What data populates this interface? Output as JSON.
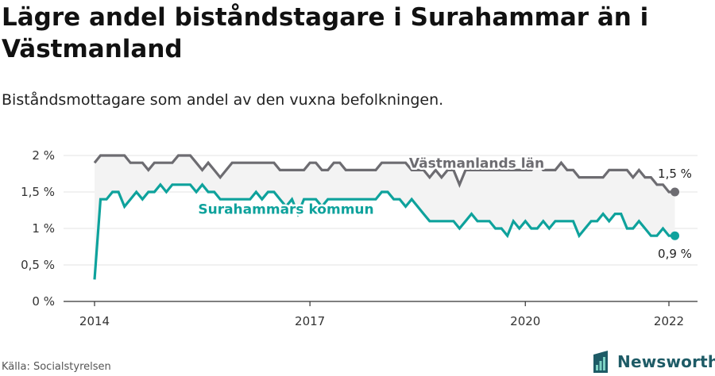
{
  "header": {
    "title": "Lägre andel biståndstagare i Surahammar än i Västmanland",
    "subtitle": "Biståndsmottagare som andel av den vuxna befolkningen."
  },
  "footer": {
    "source": "Källa: Socialstyrelsen",
    "brand": "Newsworthy",
    "brand_icon": "newsworthy-logo-icon",
    "brand_color": "#1e5b66"
  },
  "chart_data": {
    "type": "line",
    "title": "",
    "xlabel": "",
    "ylabel": "",
    "ylim": [
      0,
      2
    ],
    "xlim": [
      2014,
      2022
    ],
    "yticks": [
      0,
      0.5,
      1,
      1.5,
      2
    ],
    "ytick_labels": [
      "0 %",
      "0,5 %",
      "1 %",
      "1,5 %",
      "2 %"
    ],
    "xticks": [
      2014,
      2017,
      2020,
      2022
    ],
    "xtick_labels": [
      "2014",
      "2017",
      "2020",
      "2022"
    ],
    "grid": "horizontal",
    "series": [
      {
        "name": "Västmanlands län",
        "color": "#6d6c71",
        "end_label": "1,5 %",
        "values": [
          [
            2014.0,
            1.9
          ],
          [
            2014.083,
            2.0
          ],
          [
            2014.167,
            2.0
          ],
          [
            2014.25,
            2.0
          ],
          [
            2014.333,
            2.0
          ],
          [
            2014.417,
            2.0
          ],
          [
            2014.5,
            1.9
          ],
          [
            2014.583,
            1.9
          ],
          [
            2014.667,
            1.9
          ],
          [
            2014.75,
            1.8
          ],
          [
            2014.833,
            1.9
          ],
          [
            2014.917,
            1.9
          ],
          [
            2015.0,
            1.9
          ],
          [
            2015.083,
            1.9
          ],
          [
            2015.167,
            2.0
          ],
          [
            2015.25,
            2.0
          ],
          [
            2015.333,
            2.0
          ],
          [
            2015.417,
            1.9
          ],
          [
            2015.5,
            1.8
          ],
          [
            2015.583,
            1.9
          ],
          [
            2015.667,
            1.8
          ],
          [
            2015.75,
            1.7
          ],
          [
            2015.833,
            1.8
          ],
          [
            2015.917,
            1.9
          ],
          [
            2016.0,
            1.9
          ],
          [
            2016.083,
            1.9
          ],
          [
            2016.167,
            1.9
          ],
          [
            2016.25,
            1.9
          ],
          [
            2016.333,
            1.9
          ],
          [
            2016.417,
            1.9
          ],
          [
            2016.5,
            1.9
          ],
          [
            2016.583,
            1.8
          ],
          [
            2016.667,
            1.8
          ],
          [
            2016.75,
            1.8
          ],
          [
            2016.833,
            1.8
          ],
          [
            2016.917,
            1.8
          ],
          [
            2017.0,
            1.9
          ],
          [
            2017.083,
            1.9
          ],
          [
            2017.167,
            1.8
          ],
          [
            2017.25,
            1.8
          ],
          [
            2017.333,
            1.9
          ],
          [
            2017.417,
            1.9
          ],
          [
            2017.5,
            1.8
          ],
          [
            2017.583,
            1.8
          ],
          [
            2017.667,
            1.8
          ],
          [
            2017.75,
            1.8
          ],
          [
            2017.833,
            1.8
          ],
          [
            2017.917,
            1.8
          ],
          [
            2018.0,
            1.9
          ],
          [
            2018.083,
            1.9
          ],
          [
            2018.167,
            1.9
          ],
          [
            2018.25,
            1.9
          ],
          [
            2018.333,
            1.9
          ],
          [
            2018.417,
            1.8
          ],
          [
            2018.5,
            1.8
          ],
          [
            2018.583,
            1.8
          ],
          [
            2018.667,
            1.7
          ],
          [
            2018.75,
            1.8
          ],
          [
            2018.833,
            1.7
          ],
          [
            2018.917,
            1.8
          ],
          [
            2019.0,
            1.8
          ],
          [
            2019.083,
            1.6
          ],
          [
            2019.167,
            1.8
          ],
          [
            2019.25,
            1.8
          ],
          [
            2019.333,
            1.8
          ],
          [
            2019.417,
            1.8
          ],
          [
            2019.5,
            1.8
          ],
          [
            2019.583,
            1.8
          ],
          [
            2019.667,
            1.8
          ],
          [
            2019.75,
            1.8
          ],
          [
            2019.833,
            1.8
          ],
          [
            2019.917,
            1.8
          ],
          [
            2020.0,
            1.8
          ],
          [
            2020.083,
            1.8
          ],
          [
            2020.167,
            1.9
          ],
          [
            2020.25,
            1.8
          ],
          [
            2020.333,
            1.8
          ],
          [
            2020.417,
            1.8
          ],
          [
            2020.5,
            1.9
          ],
          [
            2020.583,
            1.8
          ],
          [
            2020.667,
            1.8
          ],
          [
            2020.75,
            1.7
          ],
          [
            2020.833,
            1.7
          ],
          [
            2020.917,
            1.7
          ],
          [
            2021.0,
            1.7
          ],
          [
            2021.083,
            1.7
          ],
          [
            2021.167,
            1.8
          ],
          [
            2021.25,
            1.8
          ],
          [
            2021.333,
            1.8
          ],
          [
            2021.417,
            1.8
          ],
          [
            2021.5,
            1.7
          ],
          [
            2021.583,
            1.8
          ],
          [
            2021.667,
            1.7
          ],
          [
            2021.75,
            1.7
          ],
          [
            2021.833,
            1.6
          ],
          [
            2021.917,
            1.6
          ],
          [
            2022.0,
            1.5
          ],
          [
            2022.083,
            1.5
          ]
        ]
      },
      {
        "name": "Surahammars kommun",
        "color": "#0ea29c",
        "end_label": "0,9 %",
        "values": [
          [
            2014.0,
            0.3
          ],
          [
            2014.083,
            1.4
          ],
          [
            2014.167,
            1.4
          ],
          [
            2014.25,
            1.5
          ],
          [
            2014.333,
            1.5
          ],
          [
            2014.417,
            1.3
          ],
          [
            2014.5,
            1.4
          ],
          [
            2014.583,
            1.5
          ],
          [
            2014.667,
            1.4
          ],
          [
            2014.75,
            1.5
          ],
          [
            2014.833,
            1.5
          ],
          [
            2014.917,
            1.6
          ],
          [
            2015.0,
            1.5
          ],
          [
            2015.083,
            1.6
          ],
          [
            2015.167,
            1.6
          ],
          [
            2015.25,
            1.6
          ],
          [
            2015.333,
            1.6
          ],
          [
            2015.417,
            1.5
          ],
          [
            2015.5,
            1.6
          ],
          [
            2015.583,
            1.5
          ],
          [
            2015.667,
            1.5
          ],
          [
            2015.75,
            1.4
          ],
          [
            2015.833,
            1.4
          ],
          [
            2015.917,
            1.4
          ],
          [
            2016.0,
            1.4
          ],
          [
            2016.083,
            1.4
          ],
          [
            2016.167,
            1.4
          ],
          [
            2016.25,
            1.5
          ],
          [
            2016.333,
            1.4
          ],
          [
            2016.417,
            1.5
          ],
          [
            2016.5,
            1.5
          ],
          [
            2016.583,
            1.4
          ],
          [
            2016.667,
            1.3
          ],
          [
            2016.75,
            1.4
          ],
          [
            2016.833,
            1.2
          ],
          [
            2016.917,
            1.4
          ],
          [
            2017.0,
            1.4
          ],
          [
            2017.083,
            1.4
          ],
          [
            2017.167,
            1.3
          ],
          [
            2017.25,
            1.4
          ],
          [
            2017.333,
            1.4
          ],
          [
            2017.417,
            1.4
          ],
          [
            2017.5,
            1.4
          ],
          [
            2017.583,
            1.4
          ],
          [
            2017.667,
            1.4
          ],
          [
            2017.75,
            1.4
          ],
          [
            2017.833,
            1.4
          ],
          [
            2017.917,
            1.4
          ],
          [
            2018.0,
            1.5
          ],
          [
            2018.083,
            1.5
          ],
          [
            2018.167,
            1.4
          ],
          [
            2018.25,
            1.4
          ],
          [
            2018.333,
            1.3
          ],
          [
            2018.417,
            1.4
          ],
          [
            2018.5,
            1.3
          ],
          [
            2018.583,
            1.2
          ],
          [
            2018.667,
            1.1
          ],
          [
            2018.75,
            1.1
          ],
          [
            2018.833,
            1.1
          ],
          [
            2018.917,
            1.1
          ],
          [
            2019.0,
            1.1
          ],
          [
            2019.083,
            1.0
          ],
          [
            2019.167,
            1.1
          ],
          [
            2019.25,
            1.2
          ],
          [
            2019.333,
            1.1
          ],
          [
            2019.417,
            1.1
          ],
          [
            2019.5,
            1.1
          ],
          [
            2019.583,
            1.0
          ],
          [
            2019.667,
            1.0
          ],
          [
            2019.75,
            0.9
          ],
          [
            2019.833,
            1.1
          ],
          [
            2019.917,
            1.0
          ],
          [
            2020.0,
            1.1
          ],
          [
            2020.083,
            1.0
          ],
          [
            2020.167,
            1.0
          ],
          [
            2020.25,
            1.1
          ],
          [
            2020.333,
            1.0
          ],
          [
            2020.417,
            1.1
          ],
          [
            2020.5,
            1.1
          ],
          [
            2020.583,
            1.1
          ],
          [
            2020.667,
            1.1
          ],
          [
            2020.75,
            0.9
          ],
          [
            2020.833,
            1.0
          ],
          [
            2020.917,
            1.1
          ],
          [
            2021.0,
            1.1
          ],
          [
            2021.083,
            1.2
          ],
          [
            2021.167,
            1.1
          ],
          [
            2021.25,
            1.2
          ],
          [
            2021.333,
            1.2
          ],
          [
            2021.417,
            1.0
          ],
          [
            2021.5,
            1.0
          ],
          [
            2021.583,
            1.1
          ],
          [
            2021.667,
            1.0
          ],
          [
            2021.75,
            0.9
          ],
          [
            2021.833,
            0.9
          ],
          [
            2021.917,
            1.0
          ],
          [
            2022.0,
            0.9
          ],
          [
            2022.083,
            0.9
          ]
        ]
      }
    ]
  }
}
